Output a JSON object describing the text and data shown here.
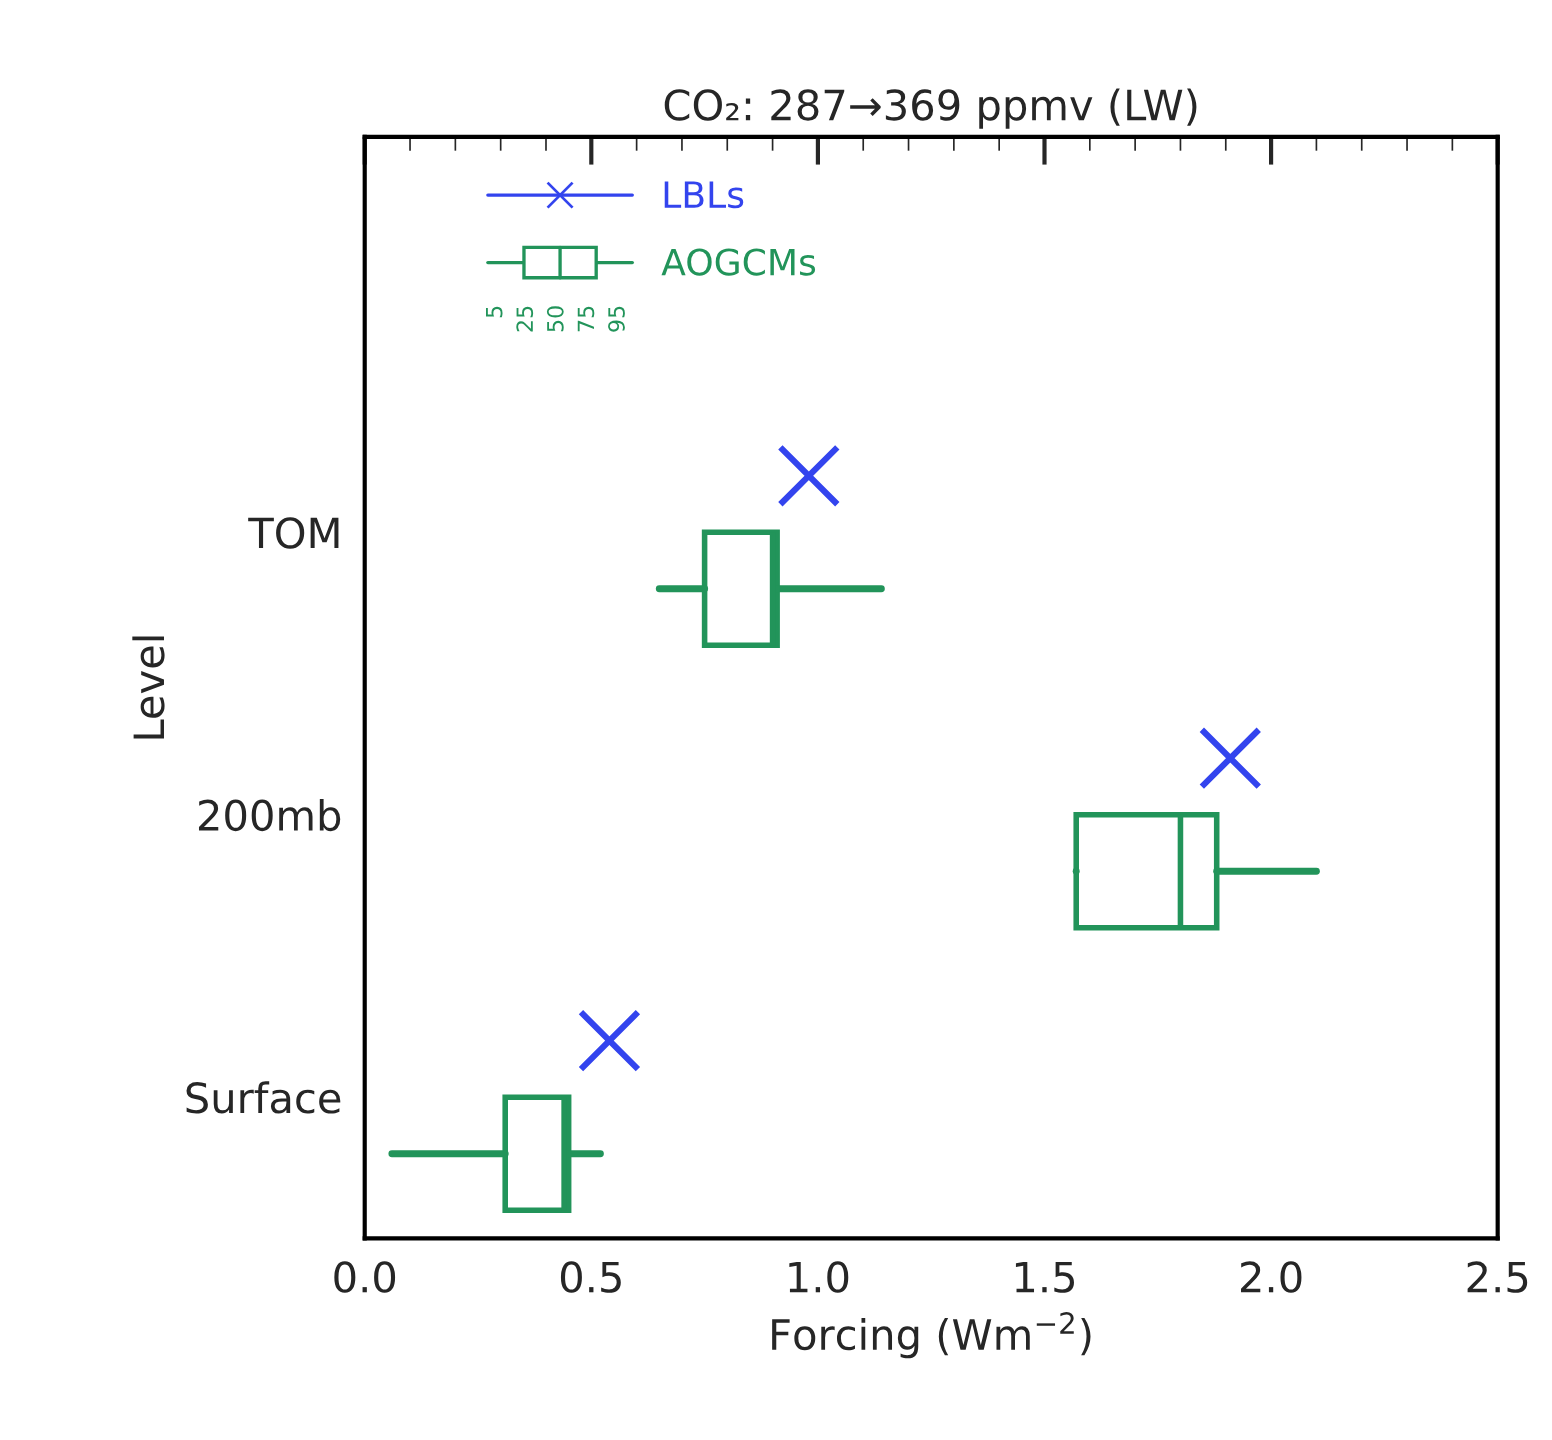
{
  "chart_data": {
    "type": "box",
    "orientation": "horizontal",
    "title": "CO₂: 287→369 ppmv (LW)",
    "xlabel": "Forcing (Wm$^{−2}$)",
    "ylabel": "Level",
    "categories": [
      "TOM",
      "200mb",
      "Surface"
    ],
    "xlim": [
      0.0,
      2.5
    ],
    "xticks": [
      {
        "value": 0.0,
        "label": "0.0"
      },
      {
        "value": 0.5,
        "label": "0.5"
      },
      {
        "value": 1.0,
        "label": "1.0"
      },
      {
        "value": 1.5,
        "label": "1.5"
      },
      {
        "value": 2.0,
        "label": "2.0"
      },
      {
        "value": 2.5,
        "label": "2.5"
      }
    ],
    "series": [
      {
        "name": "LBLs",
        "type": "scatter",
        "color": "#3344ee",
        "marker": "cross",
        "x": [
          "TOM",
          "200mb",
          "Surface"
        ],
        "values": [
          0.98,
          1.91,
          0.54
        ]
      },
      {
        "name": "AOGCMs",
        "color": "#22945a",
        "boxes": [
          {
            "low": 0.65,
            "q1": 0.75,
            "median": 0.9,
            "q3": 0.91,
            "high": 1.14
          },
          {
            "low": 1.57,
            "q1": 1.57,
            "median": 1.8,
            "q3": 1.88,
            "high": 2.1
          },
          {
            "low": 0.06,
            "q1": 0.31,
            "median": 0.44,
            "q3": 0.45,
            "high": 0.52
          }
        ]
      }
    ],
    "annotations": [
      "5",
      "25",
      "50",
      "75",
      "95"
    ],
    "legend": "top left",
    "grid": false
  }
}
